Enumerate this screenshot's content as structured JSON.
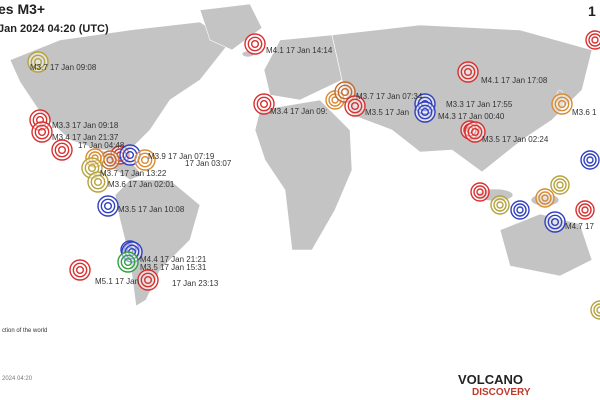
{
  "header": {
    "title": "es M3+",
    "subtitle": "Jan 2024 04:20 (UTC)",
    "corner": "1"
  },
  "quakes": [
    {
      "label": "M3.7  17 Jan 09:08",
      "color": "#b5a33c"
    },
    {
      "label": "M4.1  17 Jan 14:14",
      "color": "#d93030"
    },
    {
      "label": "M4.1  17 Jan 17:08",
      "color": "#d93030"
    },
    {
      "label": "M3.7  17 Jan 07:34",
      "color": "#c06a30"
    },
    {
      "label": "M3.3  17 Jan 17:55",
      "color": "#3040c0"
    },
    {
      "label": "M3.4  17 Jan 09:",
      "color": "#d93030"
    },
    {
      "label": "M3.5  17 Jan",
      "color": "#d93030"
    },
    {
      "label": "M4.3  17 Jan 00:40",
      "color": "#3040c0"
    },
    {
      "label": "M3.6  1",
      "color": "#d98a30"
    },
    {
      "label": "M3.3  17 Jan 09:18",
      "color": "#d93030"
    },
    {
      "label": "M3.4  17 Jan 21:37",
      "color": "#d93030"
    },
    {
      "label": "17 Jan 04:48",
      "color": "#d93030"
    },
    {
      "label": "M3.9  17 Jan 07:19",
      "color": "#3040c0"
    },
    {
      "label": "17 Jan 03:07",
      "color": "#d98a30"
    },
    {
      "label": "M3.5  17 Jan 02:24",
      "color": "#d93030"
    },
    {
      "label": "M3.7  17 Jan 13:22",
      "color": "#b5a33c"
    },
    {
      "label": "M3.6  17 Jan 02:01",
      "color": "#b5a33c"
    },
    {
      "label": "M3.5  17 Jan 10:08",
      "color": "#3040c0"
    },
    {
      "label": "M4.4  17 Jan 21:21",
      "color": "#3040c0"
    },
    {
      "label": "M3.5  17 Jan 15:31",
      "color": "#30a040"
    },
    {
      "label": "M5.1  17 Jan",
      "color": "#d93030"
    },
    {
      "label": "17 Jan 23:13",
      "color": "#d93030"
    },
    {
      "label": "M4.7  17",
      "color": "#3040c0"
    }
  ],
  "footer": {
    "note": "ction of the world",
    "time": "2024 04:20"
  },
  "logo": {
    "line1": "VOLCANO",
    "line2": "DISCOVERY"
  }
}
